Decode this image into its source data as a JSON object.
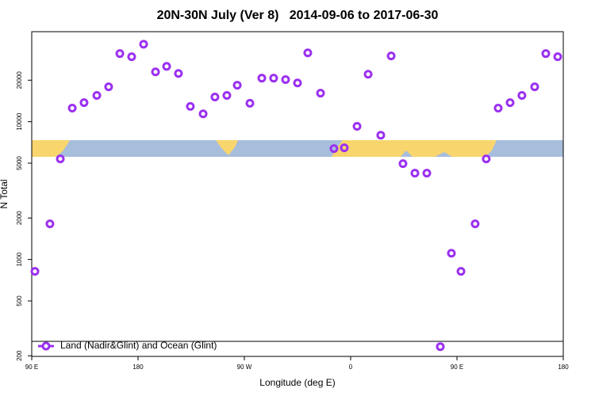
{
  "chart_data": {
    "type": "scatter",
    "title": "20N-30N July (Ver 8)   2014-09-06 to 2017-06-30",
    "xlabel": "Longitude (deg E)",
    "ylabel": "N Total",
    "xlim": [
      90,
      540
    ],
    "xticks": [
      {
        "value": 90,
        "label": "90 E"
      },
      180,
      {
        "value": 270,
        "label": "90 W"
      },
      {
        "value": 360,
        "label": "0"
      },
      {
        "value": 450,
        "label": "90 E"
      },
      {
        "value": 540,
        "label": "180"
      }
    ],
    "ylim": [
      198,
      45000
    ],
    "yscale": "log",
    "yticks": [
      200,
      500,
      1000,
      2000,
      5000,
      10000,
      20000
    ],
    "grid": false,
    "legend": "bottom-left",
    "series": [
      {
        "name": "Land (Nadir&Glint) and Ocean (Glint)",
        "color": "#9b30f0",
        "x": [
          92.7,
          105.4,
          114.2,
          124.3,
          134.3,
          145.1,
          155.1,
          164.6,
          174.6,
          184.7,
          194.8,
          204.2,
          214.2,
          224.3,
          235.1,
          245.1,
          255.2,
          264.0,
          274.7,
          284.8,
          294.8,
          304.9,
          315.0,
          323.7,
          334.5,
          345.9,
          354.6,
          365.4,
          374.8,
          385.5,
          394.3,
          404.3,
          414.4,
          424.5,
          435.9,
          445.3,
          453.4,
          465.4,
          474.8,
          484.9,
          495.0,
          505.0,
          515.8,
          525.2,
          535.3
        ],
        "values": [
          820,
          1815,
          5370,
          12540,
          13740,
          15500,
          17900,
          31200,
          29600,
          36500,
          23000,
          25200,
          22400,
          12900,
          11400,
          15100,
          15500,
          18400,
          13600,
          20700,
          20700,
          20200,
          19100,
          31600,
          16100,
          6380,
          6460,
          9250,
          22100,
          7980,
          30000,
          4960,
          4230,
          4230,
          233,
          1110,
          820,
          1815,
          5370,
          12540,
          13740,
          15500,
          17900,
          31200,
          29600
        ]
      }
    ]
  }
}
